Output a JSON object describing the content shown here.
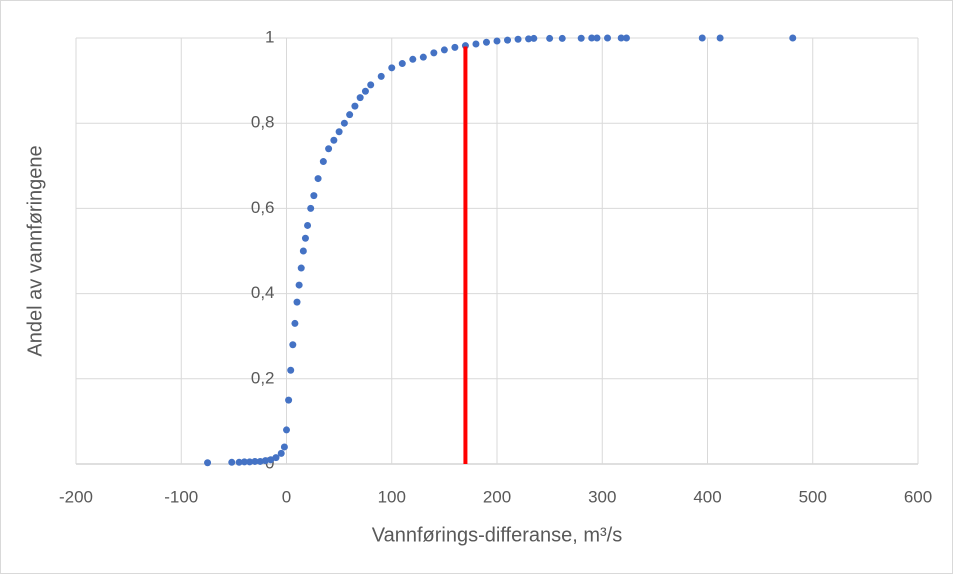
{
  "chart_data": {
    "type": "scatter",
    "x_label": "Vannførings-differanse, m³/s",
    "y_label": "Andel av vannføringene",
    "xlim": [
      -200,
      600
    ],
    "xticks": [
      -200,
      -100,
      0,
      100,
      200,
      300,
      400,
      500,
      600
    ],
    "ylim": [
      0,
      1
    ],
    "yticks": [
      0,
      {
        "value": 0.2,
        "label": "0,2"
      },
      {
        "value": 0.4,
        "label": "0,4"
      },
      {
        "value": 0.6,
        "label": "0,6"
      },
      {
        "value": 0.8,
        "label": "0,8"
      },
      1
    ],
    "grid": true,
    "series": [
      {
        "color": "#4472c4",
        "x": [
          -75,
          -52,
          -45,
          -40,
          -35,
          -30,
          -25,
          -20,
          -15,
          -10,
          -5,
          -2,
          0,
          2,
          4,
          6,
          8,
          10,
          12,
          14,
          16,
          18,
          20,
          23,
          26,
          30,
          35,
          40,
          45,
          50,
          55,
          60,
          65,
          70,
          75,
          80,
          90,
          100,
          110,
          120,
          130,
          140,
          150,
          160,
          170,
          180,
          190,
          200,
          210,
          220,
          230,
          235,
          250,
          262,
          280,
          290,
          295,
          305,
          318,
          323,
          395,
          412,
          481
        ],
        "values": [
          0.003,
          0.004,
          0.004,
          0.005,
          0.005,
          0.006,
          0.006,
          0.008,
          0.01,
          0.015,
          0.025,
          0.04,
          0.08,
          0.15,
          0.22,
          0.28,
          0.33,
          0.38,
          0.42,
          0.46,
          0.5,
          0.53,
          0.56,
          0.6,
          0.63,
          0.67,
          0.71,
          0.74,
          0.76,
          0.78,
          0.8,
          0.82,
          0.84,
          0.86,
          0.875,
          0.89,
          0.91,
          0.93,
          0.94,
          0.95,
          0.955,
          0.965,
          0.972,
          0.978,
          0.982,
          0.986,
          0.99,
          0.993,
          0.995,
          0.997,
          0.998,
          0.999,
          0.999,
          0.999,
          0.9995,
          1,
          1,
          1,
          1,
          1,
          1,
          1,
          1
        ]
      }
    ],
    "reference_line": {
      "x": 170,
      "y": [
        0,
        0.98
      ],
      "color": "#ff0000"
    }
  }
}
